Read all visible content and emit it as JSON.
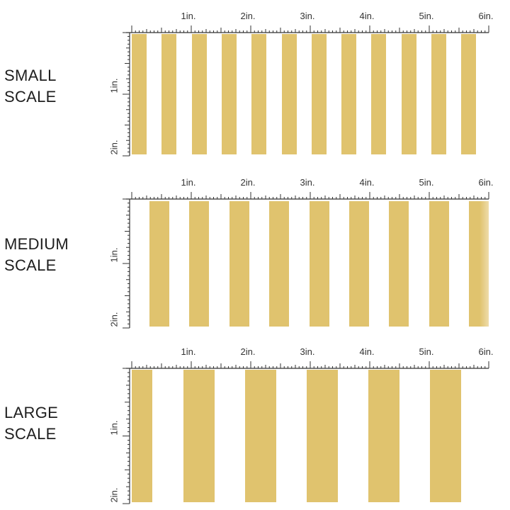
{
  "colors": {
    "stripe": "#e0c36e",
    "stripe_fade": "#efdcaa",
    "ruler": "#333333",
    "background": "#ffffff"
  },
  "ruler": {
    "horizontal_labels": [
      "1in.",
      "2in.",
      "3in.",
      "4in.",
      "5in.",
      "6in."
    ],
    "vertical_labels": [
      "1in.",
      "2in."
    ]
  },
  "scales": [
    {
      "label_line1": "SMALL",
      "label_line2": "SCALE",
      "stripe_count": 12
    },
    {
      "label_line1": "MEDIUM",
      "label_line2": "SCALE",
      "stripe_count": 9
    },
    {
      "label_line1": "LARGE",
      "label_line2": "SCALE",
      "stripe_count": 6
    }
  ]
}
